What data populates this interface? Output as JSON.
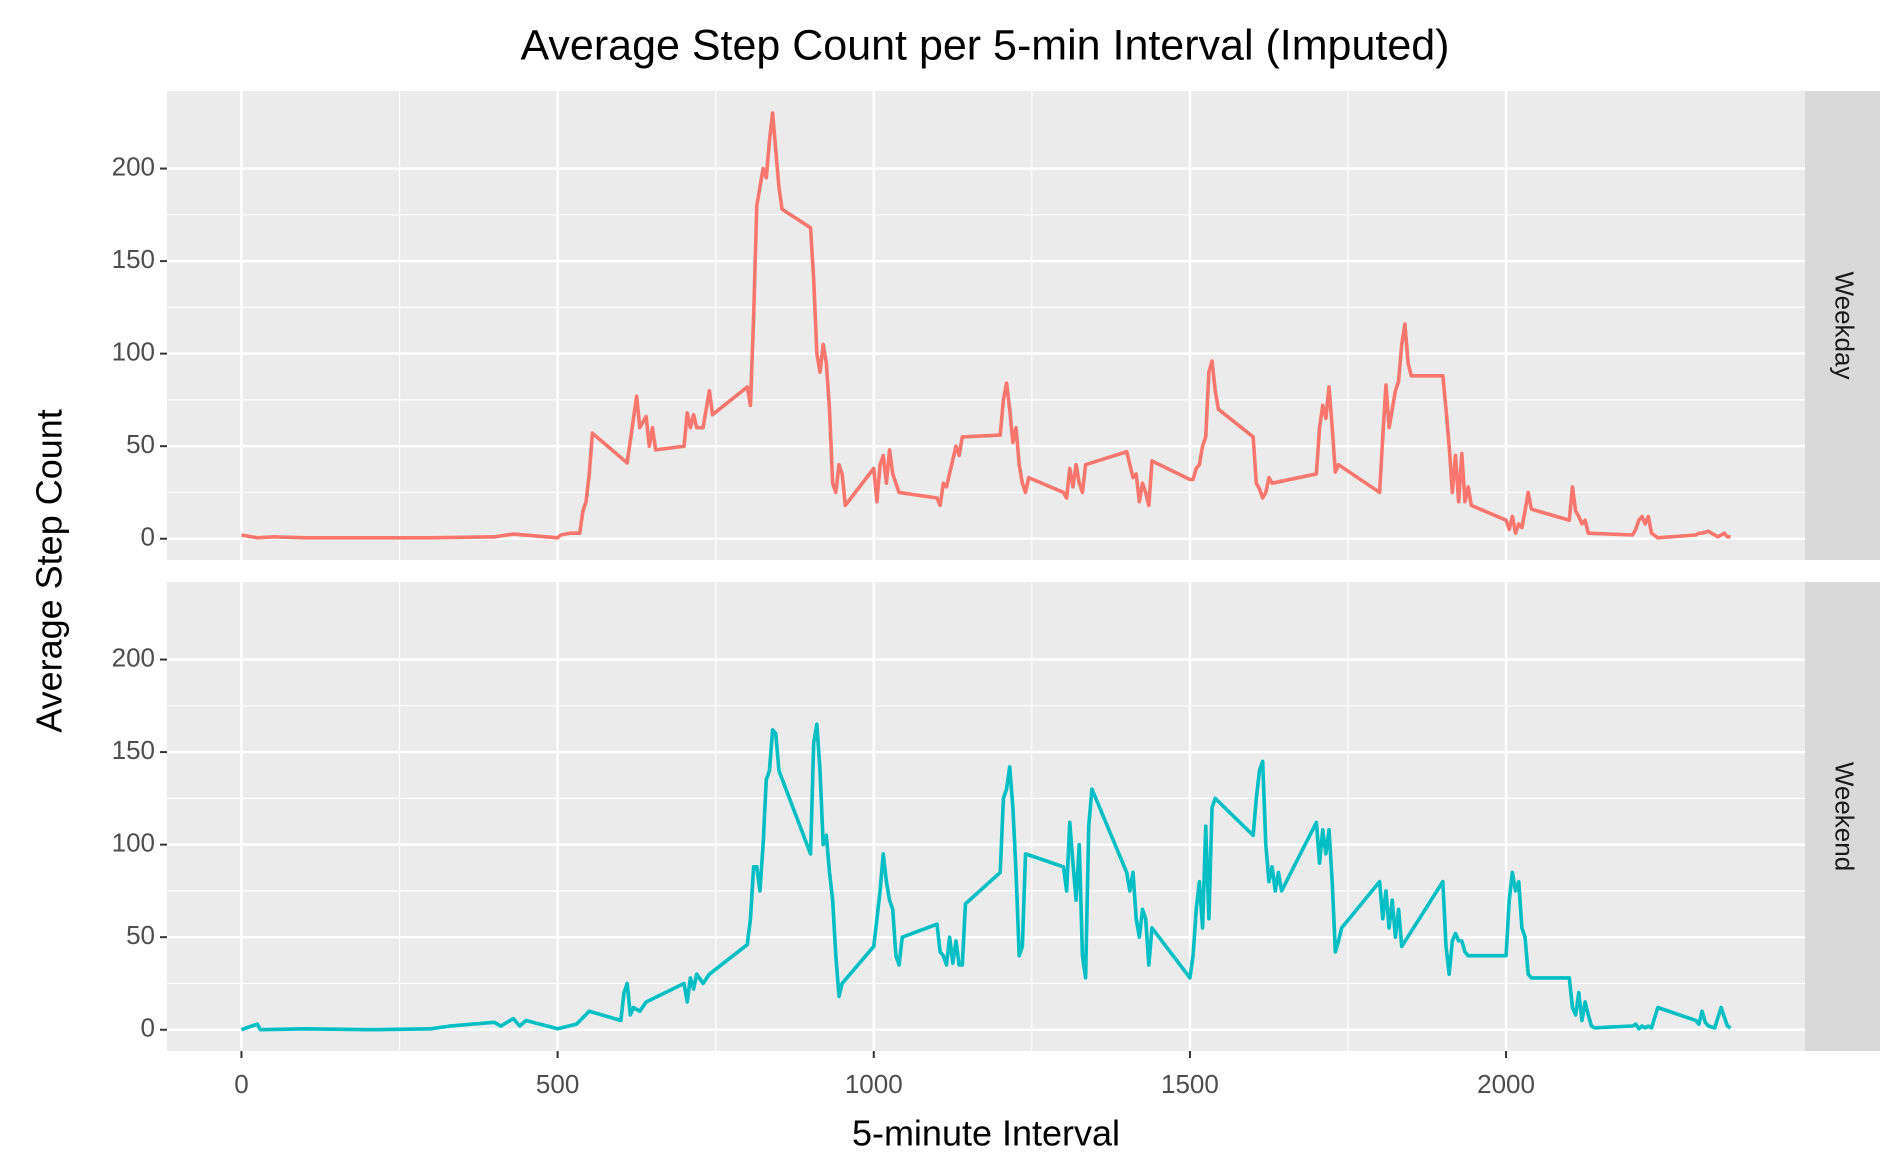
{
  "chart_data": {
    "type": "line",
    "title": "Average Step Count per 5-min Interval (Imputed)",
    "x_label": "5-minute Interval",
    "y_label": "Average Step Count",
    "xlim": [
      -117.75,
      2472.75
    ],
    "xticks": [
      0,
      500,
      1000,
      1500,
      2000
    ],
    "ylim": [
      -11.5,
      241.9
    ],
    "yticks": [
      0,
      50,
      100,
      150,
      200
    ],
    "grid": true,
    "minor_grid": true,
    "series": [
      {
        "name": "Weekday",
        "color": "#F8766D",
        "x": [
          0,
          25,
          50,
          100,
          200,
          300,
          400,
          430,
          500,
          505,
          520,
          535,
          540,
          545,
          550,
          555,
          610,
          620,
          625,
          630,
          640,
          645,
          650,
          655,
          700,
          705,
          710,
          715,
          720,
          730,
          740,
          745,
          800,
          805,
          810,
          815,
          820,
          825,
          830,
          835,
          840,
          845,
          850,
          855,
          900,
          905,
          910,
          915,
          920,
          925,
          930,
          935,
          940,
          945,
          950,
          955,
          1000,
          1005,
          1010,
          1015,
          1020,
          1025,
          1030,
          1040,
          1100,
          1105,
          1110,
          1115,
          1130,
          1135,
          1140,
          1200,
          1205,
          1210,
          1215,
          1220,
          1225,
          1230,
          1235,
          1240,
          1245,
          1300,
          1305,
          1310,
          1315,
          1320,
          1325,
          1330,
          1335,
          1400,
          1405,
          1410,
          1415,
          1420,
          1425,
          1430,
          1435,
          1440,
          1500,
          1505,
          1510,
          1515,
          1520,
          1525,
          1530,
          1535,
          1540,
          1545,
          1600,
          1605,
          1610,
          1615,
          1620,
          1625,
          1630,
          1700,
          1705,
          1710,
          1715,
          1720,
          1725,
          1730,
          1735,
          1800,
          1805,
          1810,
          1815,
          1820,
          1825,
          1830,
          1835,
          1840,
          1845,
          1850,
          1900,
          1905,
          1910,
          1915,
          1920,
          1925,
          1930,
          1935,
          1940,
          1945,
          2000,
          2005,
          2010,
          2015,
          2020,
          2025,
          2030,
          2035,
          2040,
          2100,
          2105,
          2110,
          2115,
          2120,
          2125,
          2130,
          2200,
          2205,
          2210,
          2215,
          2220,
          2225,
          2230,
          2240,
          2300,
          2305,
          2310,
          2320,
          2330,
          2335,
          2340,
          2345,
          2350,
          2355
        ],
        "values": [
          2,
          0.5,
          1,
          0.5,
          0.5,
          0.5,
          1,
          2.5,
          0.5,
          2,
          3,
          3,
          15,
          20,
          35,
          57,
          41,
          65,
          77,
          60,
          66,
          50,
          60,
          48,
          50,
          68,
          60,
          67,
          60,
          60,
          80,
          67,
          82,
          72,
          120,
          180,
          190,
          200,
          195,
          215,
          230,
          210,
          190,
          178,
          168,
          140,
          100,
          90,
          105,
          95,
          70,
          30,
          25,
          40,
          35,
          18,
          38,
          20,
          40,
          45,
          30,
          48,
          35,
          25,
          22,
          18,
          30,
          28,
          50,
          45,
          55,
          56,
          75,
          84,
          70,
          52,
          60,
          40,
          30,
          25,
          33,
          25,
          22,
          38,
          28,
          40,
          30,
          25,
          40,
          47,
          40,
          33,
          35,
          20,
          30,
          25,
          18,
          42,
          32,
          32,
          38,
          40,
          50,
          55,
          90,
          96,
          80,
          70,
          55,
          30,
          27,
          22,
          25,
          33,
          30,
          35,
          60,
          72,
          65,
          82,
          60,
          36,
          40,
          25,
          55,
          83,
          60,
          70,
          80,
          85,
          105,
          116,
          95,
          88,
          88,
          70,
          50,
          25,
          45,
          20,
          46,
          20,
          28,
          18,
          10,
          5,
          12,
          3,
          8,
          6,
          15,
          25,
          16,
          10,
          28,
          15,
          12,
          8,
          10,
          3,
          2,
          5,
          10,
          12,
          8,
          12,
          3,
          0.5,
          2,
          3,
          3,
          4,
          2,
          1,
          2,
          3,
          1,
          1
        ]
      },
      {
        "name": "Weekend",
        "color": "#00BFC4",
        "x": [
          0,
          25,
          30,
          100,
          200,
          300,
          330,
          400,
          410,
          430,
          440,
          450,
          500,
          530,
          550,
          600,
          605,
          610,
          615,
          620,
          630,
          640,
          700,
          705,
          710,
          715,
          720,
          730,
          740,
          800,
          805,
          810,
          815,
          820,
          825,
          830,
          835,
          840,
          845,
          850,
          900,
          905,
          910,
          915,
          920,
          925,
          930,
          935,
          940,
          945,
          950,
          1000,
          1005,
          1010,
          1015,
          1020,
          1025,
          1030,
          1035,
          1040,
          1045,
          1100,
          1105,
          1110,
          1115,
          1120,
          1125,
          1130,
          1135,
          1140,
          1145,
          1200,
          1205,
          1210,
          1215,
          1220,
          1225,
          1230,
          1235,
          1240,
          1300,
          1305,
          1310,
          1315,
          1320,
          1325,
          1330,
          1335,
          1340,
          1345,
          1400,
          1405,
          1410,
          1415,
          1420,
          1425,
          1430,
          1435,
          1440,
          1500,
          1505,
          1510,
          1515,
          1520,
          1525,
          1530,
          1535,
          1540,
          1600,
          1605,
          1610,
          1615,
          1620,
          1625,
          1630,
          1635,
          1640,
          1645,
          1700,
          1705,
          1710,
          1715,
          1720,
          1725,
          1730,
          1735,
          1740,
          1800,
          1805,
          1810,
          1815,
          1820,
          1825,
          1830,
          1835,
          1900,
          1905,
          1910,
          1915,
          1920,
          1925,
          1930,
          1935,
          1940,
          2000,
          2005,
          2010,
          2015,
          2020,
          2025,
          2030,
          2035,
          2040,
          2100,
          2105,
          2110,
          2115,
          2120,
          2125,
          2130,
          2135,
          2140,
          2200,
          2205,
          2210,
          2215,
          2220,
          2225,
          2230,
          2240,
          2300,
          2305,
          2310,
          2315,
          2320,
          2330,
          2340,
          2345,
          2350,
          2355
        ],
        "values": [
          0,
          3,
          0,
          0.5,
          0,
          0.5,
          2,
          4,
          2,
          6,
          2,
          5,
          0.5,
          3,
          10,
          5,
          20,
          25,
          8,
          12,
          10,
          15,
          25,
          15,
          28,
          22,
          30,
          25,
          30,
          46,
          60,
          88,
          88,
          75,
          100,
          135,
          140,
          162,
          160,
          140,
          95,
          155,
          165,
          140,
          100,
          105,
          85,
          70,
          40,
          18,
          25,
          45,
          60,
          75,
          95,
          80,
          70,
          65,
          40,
          35,
          50,
          57,
          42,
          40,
          35,
          50,
          36,
          48,
          35,
          35,
          68,
          85,
          125,
          130,
          142,
          120,
          85,
          40,
          45,
          95,
          88,
          75,
          112,
          90,
          70,
          100,
          40,
          28,
          110,
          130,
          85,
          75,
          85,
          60,
          50,
          65,
          60,
          35,
          55,
          28,
          40,
          65,
          80,
          55,
          110,
          60,
          120,
          125,
          105,
          125,
          140,
          145,
          100,
          80,
          88,
          75,
          85,
          75,
          112,
          90,
          108,
          95,
          108,
          80,
          42,
          48,
          55,
          80,
          60,
          75,
          55,
          70,
          50,
          65,
          45,
          80,
          45,
          30,
          48,
          52,
          48,
          48,
          42,
          40,
          40,
          70,
          85,
          75,
          80,
          55,
          50,
          30,
          28,
          28,
          12,
          8,
          20,
          5,
          15,
          8,
          2,
          1,
          2,
          3,
          0.5,
          2,
          1,
          2,
          1,
          12,
          5,
          3,
          10,
          4,
          2,
          1,
          12,
          7,
          2,
          1
        ]
      }
    ]
  }
}
